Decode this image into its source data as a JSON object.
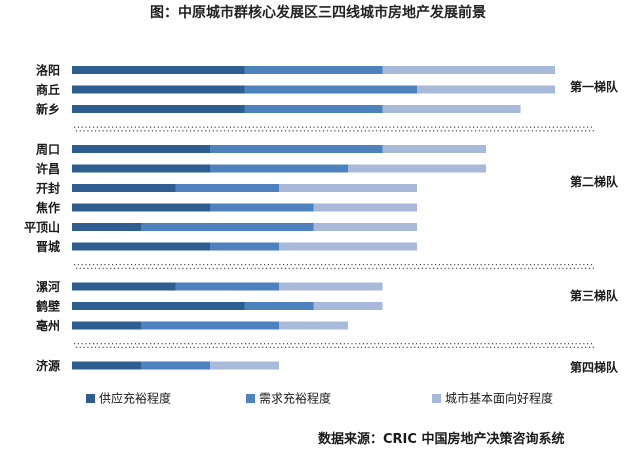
{
  "chart_data": {
    "type": "bar",
    "orientation": "horizontal",
    "stacked": true,
    "title": "图：中原城市群核心发展区三四线城市房地产发展前景",
    "categories": [
      "洛阳",
      "商丘",
      "新乡",
      "周口",
      "许昌",
      "开封",
      "焦作",
      "平顶山",
      "晋城",
      "漯河",
      "鹤壁",
      "亳州",
      "济源"
    ],
    "series": [
      {
        "name": "供应充裕程度",
        "color": "#2e5d8f",
        "values": [
          5,
          5,
          5,
          4,
          4,
          3,
          4,
          2,
          4,
          3,
          5,
          2,
          2
        ]
      },
      {
        "name": "需求充裕程度",
        "color": "#4d82bf",
        "values": [
          4,
          5,
          4,
          5,
          4,
          3,
          3,
          5,
          2,
          3,
          2,
          4,
          2
        ]
      },
      {
        "name": "城市基本面向好程度",
        "color": "#a8b9da",
        "values": [
          5,
          4,
          4,
          3,
          4,
          4,
          3,
          3,
          4,
          3,
          2,
          2,
          2
        ]
      }
    ],
    "groups": [
      {
        "label": "第一梯队",
        "count": 3
      },
      {
        "label": "第二梯队",
        "count": 6
      },
      {
        "label": "第三梯队",
        "count": 3
      },
      {
        "label": "第四梯队",
        "count": 1
      }
    ],
    "legend_position": "bottom",
    "grid": false,
    "source": "数据来源：CRIC 中国房地产决策咨询系统"
  }
}
